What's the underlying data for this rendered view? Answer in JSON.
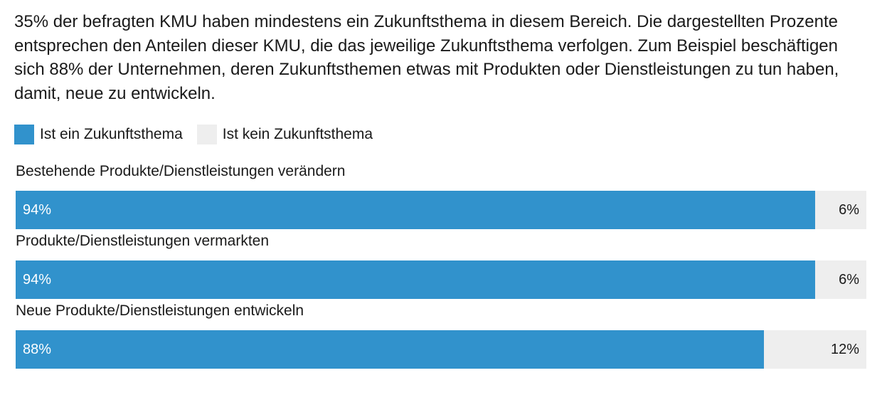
{
  "intro_text": "35% der befragten KMU haben mindestens ein Zukunftsthema in diesem Bereich. Die dargestellten Prozente entsprechen den Anteilen dieser KMU, die das jeweilige Zukunftsthema verfolgen. Zum Beispiel beschäftigen sich 88% der Unternehmen, deren Zukunftsthemen etwas mit Produkten oder Dienstleistungen zu tun haben, damit, neue zu entwickeln.",
  "legend": [
    {
      "label": "Ist ein Zukunftsthema",
      "color": "#3192cc"
    },
    {
      "label": "Ist kein Zukunftsthema",
      "color": "#eeeeee"
    }
  ],
  "chart_data": {
    "type": "bar",
    "orientation": "horizontal",
    "stacked": true,
    "categories": [
      "Bestehende Produkte/Dienstleistungen verändern",
      "Produkte/Dienstleistungen vermarkten",
      "Neue Produkte/Dienstleistungen entwickeln"
    ],
    "series": [
      {
        "name": "Ist ein Zukunftsthema",
        "values": [
          94,
          94,
          88
        ],
        "labels": [
          "94%",
          "94%",
          "88%"
        ],
        "color": "#3192cc"
      },
      {
        "name": "Ist kein Zukunftsthema",
        "values": [
          6,
          6,
          12
        ],
        "labels": [
          "6%",
          "6%",
          "12%"
        ],
        "color": "#eeeeee"
      }
    ],
    "xlim": [
      0,
      100
    ],
    "legend_position": "top-left",
    "grid": false
  }
}
